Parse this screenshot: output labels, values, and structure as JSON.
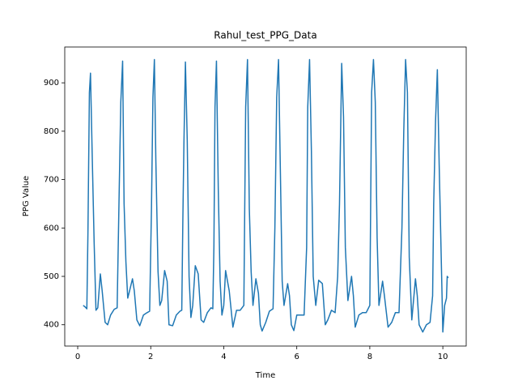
{
  "chart_data": {
    "type": "line",
    "title": "Rahul_test_PPG_Data",
    "x_label": "Time",
    "y_label": "PPG Value",
    "xlim": [
      -0.355,
      10.64
    ],
    "ylim": [
      356,
      974
    ],
    "xticks": [
      0,
      2,
      4,
      6,
      8,
      10
    ],
    "yticks": [
      400,
      500,
      600,
      700,
      800,
      900
    ],
    "series": [
      {
        "color": "#1f77b4",
        "x": [
          0.15,
          0.2,
          0.25,
          0.28,
          0.32,
          0.35,
          0.4,
          0.45,
          0.5,
          0.55,
          0.62,
          0.67,
          0.75,
          0.82,
          0.9,
          1.0,
          1.08,
          1.13,
          1.18,
          1.23,
          1.27,
          1.32,
          1.37,
          1.42,
          1.5,
          1.55,
          1.62,
          1.7,
          1.8,
          1.9,
          1.97,
          2.02,
          2.06,
          2.1,
          2.14,
          2.2,
          2.25,
          2.3,
          2.38,
          2.45,
          2.5,
          2.6,
          2.7,
          2.8,
          2.85,
          2.88,
          2.91,
          2.95,
          3.0,
          3.05,
          3.1,
          3.15,
          3.22,
          3.3,
          3.38,
          3.45,
          3.55,
          3.65,
          3.7,
          3.73,
          3.76,
          3.8,
          3.85,
          3.9,
          3.95,
          4.0,
          4.05,
          4.15,
          4.25,
          4.35,
          4.45,
          4.55,
          4.6,
          4.65,
          4.7,
          4.75,
          4.8,
          4.88,
          4.95,
          5.0,
          5.05,
          5.15,
          5.25,
          5.35,
          5.4,
          5.45,
          5.5,
          5.55,
          5.6,
          5.65,
          5.75,
          5.8,
          5.85,
          5.92,
          6.0,
          6.1,
          6.2,
          6.27,
          6.3,
          6.35,
          6.4,
          6.45,
          6.52,
          6.6,
          6.7,
          6.78,
          6.85,
          6.95,
          7.05,
          7.12,
          7.17,
          7.23,
          7.28,
          7.33,
          7.4,
          7.5,
          7.55,
          7.6,
          7.7,
          7.8,
          7.9,
          8.0,
          8.05,
          8.1,
          8.15,
          8.2,
          8.25,
          8.35,
          8.4,
          8.5,
          8.6,
          8.7,
          8.8,
          8.88,
          8.93,
          8.98,
          9.03,
          9.08,
          9.15,
          9.25,
          9.3,
          9.35,
          9.45,
          9.55,
          9.65,
          9.72,
          9.75,
          9.8,
          9.85,
          9.9,
          9.95,
          10.0,
          10.05,
          10.1,
          10.12,
          10.15
        ],
        "values": [
          440,
          437,
          433,
          590,
          880,
          920,
          740,
          570,
          430,
          435,
          505,
          470,
          405,
          400,
          420,
          432,
          435,
          650,
          860,
          945,
          650,
          530,
          455,
          470,
          495,
          470,
          410,
          398,
          420,
          425,
          428,
          640,
          870,
          948,
          740,
          510,
          440,
          450,
          512,
          490,
          400,
          398,
          420,
          428,
          430,
          620,
          780,
          943,
          780,
          500,
          415,
          440,
          522,
          505,
          410,
          405,
          425,
          435,
          433,
          560,
          850,
          945,
          680,
          490,
          420,
          440,
          512,
          470,
          395,
          430,
          430,
          440,
          850,
          948,
          640,
          510,
          440,
          495,
          465,
          400,
          387,
          405,
          428,
          433,
          600,
          870,
          948,
          720,
          490,
          440,
          485,
          460,
          400,
          388,
          420,
          420,
          420,
          560,
          850,
          948,
          760,
          500,
          440,
          492,
          485,
          400,
          410,
          430,
          425,
          500,
          650,
          940,
          830,
          560,
          450,
          500,
          460,
          395,
          420,
          425,
          425,
          440,
          880,
          948,
          860,
          580,
          440,
          490,
          460,
          395,
          405,
          425,
          425,
          600,
          800,
          948,
          880,
          540,
          410,
          495,
          460,
          400,
          385,
          400,
          405,
          460,
          650,
          820,
          927,
          730,
          560,
          385,
          440,
          455,
          500,
          497
        ]
      }
    ]
  }
}
